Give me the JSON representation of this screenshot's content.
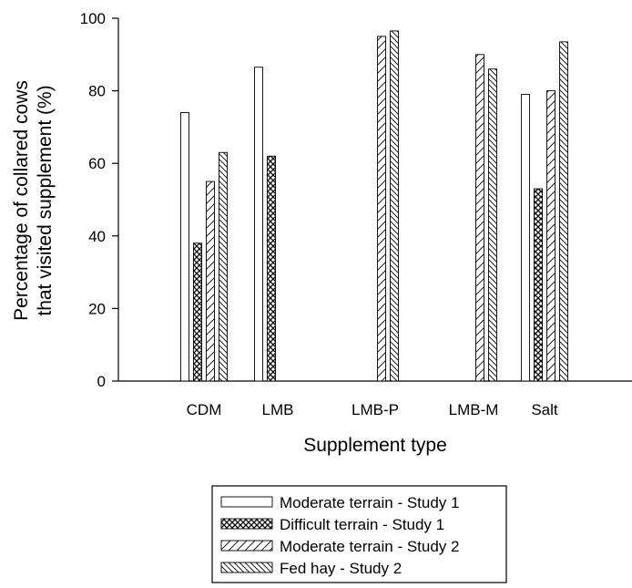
{
  "chart_data": {
    "type": "bar",
    "categories": [
      "CDM",
      "LMB",
      "LMB-P",
      "LMB-M",
      "Salt"
    ],
    "series": [
      {
        "name": "Moderate terrain - Study 1",
        "values": [
          74,
          86.5,
          null,
          null,
          79
        ],
        "pattern": "none"
      },
      {
        "name": "Difficult terrain - Study 1",
        "values": [
          38,
          62,
          null,
          null,
          53
        ],
        "pattern": "crosshatch"
      },
      {
        "name": "Moderate terrain - Study 2",
        "values": [
          55,
          null,
          95,
          90,
          80
        ],
        "pattern": "forward-diagonal"
      },
      {
        "name": "Fed hay - Study 2",
        "values": [
          63,
          null,
          96.5,
          86,
          93.5
        ],
        "pattern": "back-diagonal"
      }
    ],
    "xlabel": "Supplement type",
    "ylabel_lines": [
      "Percentage of collared cows",
      "that visited supplement (%)"
    ],
    "ylim": [
      0,
      100
    ],
    "yticks": [
      "0",
      "20",
      "40",
      "60",
      "80",
      "100"
    ],
    "grid": false,
    "legend_position": "bottom-center",
    "colors": {
      "bar_stroke": "#000000",
      "bar_fill": "#ffffff",
      "axis": "#000000"
    }
  }
}
